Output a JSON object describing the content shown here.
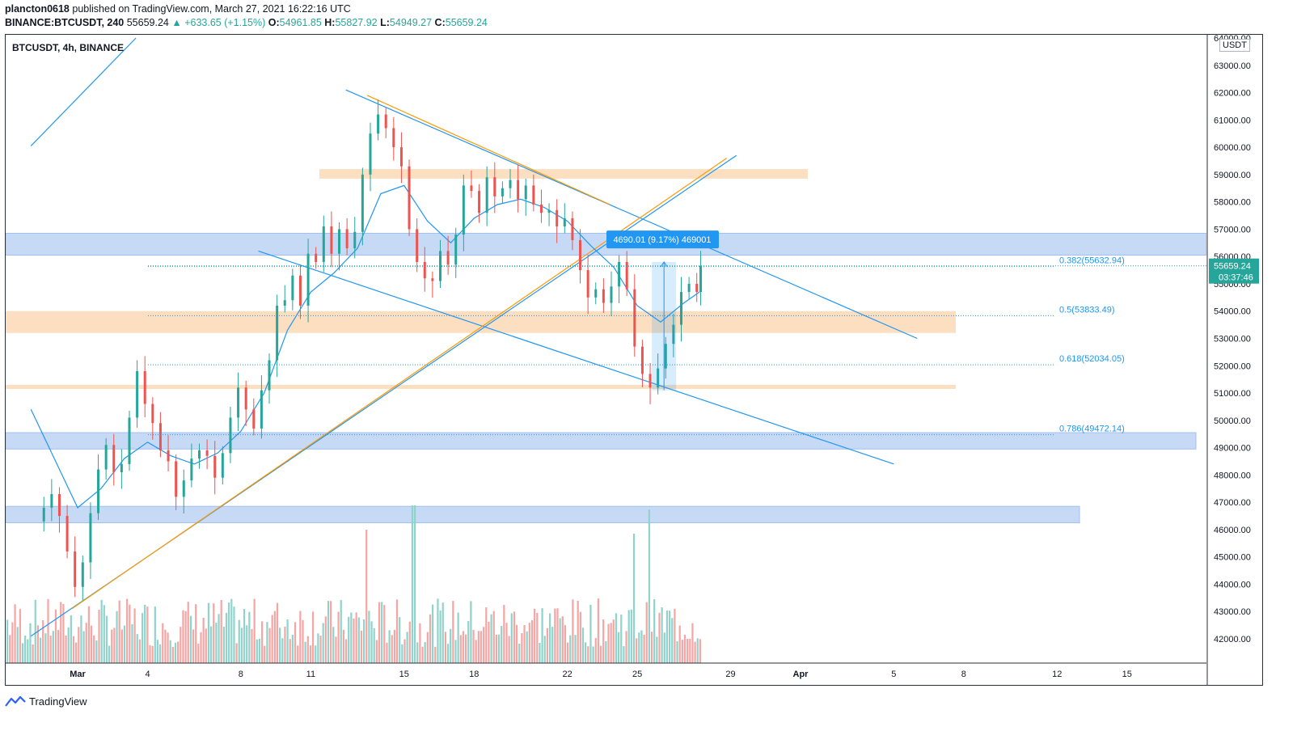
{
  "header": {
    "publisher": "plancton0618",
    "published_text": "published on TradingView.com, March 27, 2021 16:22:16 UTC",
    "symbol_line": "BINANCE:BTCUSDT, 240",
    "last": "55659.24",
    "change": "▲ +633.65 (+1.15%)",
    "o_label": "O:",
    "o": "54961.85",
    "h_label": "H:",
    "h": "55827.92",
    "l_label": "L:",
    "l": "54949.27",
    "c_label": "C:",
    "c": "55659.24"
  },
  "chart_title": "BTCUSDT, 4h, BINANCE",
  "unit_label": "USDT",
  "footer_brand": "TradingView",
  "colors": {
    "up": "#26a69a",
    "down": "#ef5350",
    "up_volume": "#8fd3cb",
    "down_volume": "#f4a6a5",
    "ema": "#2196f3",
    "trendline": "#2196f3",
    "orange": "#ff9800",
    "blue_zone": "#bcd3f5",
    "orange_zone": "#fbd9b5"
  },
  "chart_data": {
    "type": "candlestick",
    "ylim": [
      41000,
      64000
    ],
    "y_ticks": [
      42000,
      43000,
      44000,
      45000,
      46000,
      47000,
      48000,
      49000,
      50000,
      51000,
      52000,
      53000,
      54000,
      55000,
      56000,
      57000,
      58000,
      59000,
      60000,
      61000,
      62000,
      63000,
      64000
    ],
    "y_tick_labels": [
      "42000.00",
      "43000.00",
      "44000.00",
      "45000.00",
      "46000.00",
      "47000.00",
      "48000.00",
      "49000.00",
      "50000.00",
      "51000.00",
      "52000.00",
      "53000.00",
      "54000.00",
      "55000.00",
      "56000.00",
      "57000.00",
      "58000.00",
      "59000.00",
      "60000.00",
      "61000.00",
      "62000.00",
      "63000.00",
      "64000.00"
    ],
    "x_ticks": [
      {
        "label": "Mar",
        "date": "2021-03-01",
        "bold": true
      },
      {
        "label": "4",
        "date": "2021-03-04"
      },
      {
        "label": "8",
        "date": "2021-03-08"
      },
      {
        "label": "11",
        "date": "2021-03-11"
      },
      {
        "label": "15",
        "date": "2021-03-15"
      },
      {
        "label": "18",
        "date": "2021-03-18"
      },
      {
        "label": "22",
        "date": "2021-03-22"
      },
      {
        "label": "25",
        "date": "2021-03-25"
      },
      {
        "label": "29",
        "date": "2021-03-29"
      },
      {
        "label": "Apr",
        "date": "2021-04-01",
        "bold": true
      },
      {
        "label": "5",
        "date": "2021-04-05"
      },
      {
        "label": "8",
        "date": "2021-04-08"
      },
      {
        "label": "12",
        "date": "2021-04-12"
      },
      {
        "label": "15",
        "date": "2021-04-15"
      }
    ],
    "price_series": [
      [
        "2021-02-27 04:00",
        46300
      ],
      [
        "2021-02-27 12:00",
        46800
      ],
      [
        "2021-02-27 20:00",
        47300
      ],
      [
        "2021-02-28 04:00",
        46500
      ],
      [
        "2021-02-28 12:00",
        45200
      ],
      [
        "2021-02-28 20:00",
        43900
      ],
      [
        "2021-03-01 04:00",
        44800
      ],
      [
        "2021-03-01 12:00",
        46600
      ],
      [
        "2021-03-01 20:00",
        48200
      ],
      [
        "2021-03-02 04:00",
        49100
      ],
      [
        "2021-03-02 12:00",
        48100
      ],
      [
        "2021-03-02 20:00",
        48400
      ],
      [
        "2021-03-03 04:00",
        50100
      ],
      [
        "2021-03-03 12:00",
        51800
      ],
      [
        "2021-03-03 20:00",
        50600
      ],
      [
        "2021-03-04 04:00",
        49900
      ],
      [
        "2021-03-04 12:00",
        48900
      ],
      [
        "2021-03-04 20:00",
        48500
      ],
      [
        "2021-03-05 04:00",
        47200
      ],
      [
        "2021-03-05 12:00",
        47800
      ],
      [
        "2021-03-05 20:00",
        48600
      ],
      [
        "2021-03-06 04:00",
        48900
      ],
      [
        "2021-03-06 12:00",
        48700
      ],
      [
        "2021-03-06 20:00",
        47900
      ],
      [
        "2021-03-07 04:00",
        48800
      ],
      [
        "2021-03-07 12:00",
        50100
      ],
      [
        "2021-03-07 20:00",
        51200
      ],
      [
        "2021-03-08 04:00",
        50400
      ],
      [
        "2021-03-08 12:00",
        49700
      ],
      [
        "2021-03-08 20:00",
        51100
      ],
      [
        "2021-03-09 04:00",
        52200
      ],
      [
        "2021-03-09 12:00",
        54200
      ],
      [
        "2021-03-09 20:00",
        54400
      ],
      [
        "2021-03-10 04:00",
        55300
      ],
      [
        "2021-03-10 12:00",
        54200
      ],
      [
        "2021-03-10 20:00",
        56100
      ],
      [
        "2021-03-11 04:00",
        55800
      ],
      [
        "2021-03-11 12:00",
        57100
      ],
      [
        "2021-03-11 20:00",
        56100
      ],
      [
        "2021-03-12 04:00",
        57000
      ],
      [
        "2021-03-12 12:00",
        56300
      ],
      [
        "2021-03-12 20:00",
        56900
      ],
      [
        "2021-03-13 04:00",
        59000
      ],
      [
        "2021-03-13 12:00",
        60500
      ],
      [
        "2021-03-13 20:00",
        61200
      ],
      [
        "2021-03-14 04:00",
        60700
      ],
      [
        "2021-03-14 12:00",
        60000
      ],
      [
        "2021-03-14 20:00",
        59300
      ],
      [
        "2021-03-15 04:00",
        57000
      ],
      [
        "2021-03-15 12:00",
        55800
      ],
      [
        "2021-03-15 20:00",
        55200
      ],
      [
        "2021-03-16 04:00",
        55100
      ],
      [
        "2021-03-16 12:00",
        56200
      ],
      [
        "2021-03-16 20:00",
        55700
      ],
      [
        "2021-03-17 04:00",
        56800
      ],
      [
        "2021-03-17 12:00",
        58600
      ],
      [
        "2021-03-17 20:00",
        58400
      ],
      [
        "2021-03-18 04:00",
        57600
      ],
      [
        "2021-03-18 12:00",
        58900
      ],
      [
        "2021-03-18 20:00",
        58200
      ],
      [
        "2021-03-19 04:00",
        58500
      ],
      [
        "2021-03-19 12:00",
        58800
      ],
      [
        "2021-03-19 20:00",
        58100
      ],
      [
        "2021-03-20 04:00",
        58600
      ],
      [
        "2021-03-20 12:00",
        57900
      ],
      [
        "2021-03-20 20:00",
        57600
      ],
      [
        "2021-03-21 04:00",
        57700
      ],
      [
        "2021-03-21 12:00",
        57100
      ],
      [
        "2021-03-21 20:00",
        57400
      ],
      [
        "2021-03-22 04:00",
        56600
      ],
      [
        "2021-03-22 12:00",
        55500
      ],
      [
        "2021-03-22 20:00",
        54500
      ],
      [
        "2021-03-23 04:00",
        54800
      ],
      [
        "2021-03-23 12:00",
        54300
      ],
      [
        "2021-03-23 20:00",
        54900
      ],
      [
        "2021-03-24 04:00",
        55800
      ],
      [
        "2021-03-24 12:00",
        54800
      ],
      [
        "2021-03-24 20:00",
        52700
      ],
      [
        "2021-03-25 04:00",
        51700
      ],
      [
        "2021-03-25 12:00",
        51200
      ],
      [
        "2021-03-25 20:00",
        51900
      ],
      [
        "2021-03-26 04:00",
        52800
      ],
      [
        "2021-03-26 12:00",
        53500
      ],
      [
        "2021-03-26 20:00",
        54700
      ],
      [
        "2021-03-27 04:00",
        55000
      ],
      [
        "2021-03-27 12:00",
        54700
      ],
      [
        "2021-03-27 16:00",
        55659
      ]
    ],
    "ema_series": [
      [
        "2021-02-27 00:00",
        50400
      ],
      [
        "2021-02-28 00:00",
        48600
      ],
      [
        "2021-03-01 00:00",
        46800
      ],
      [
        "2021-03-02 00:00",
        47500
      ],
      [
        "2021-03-03 00:00",
        48600
      ],
      [
        "2021-03-04 00:00",
        49200
      ],
      [
        "2021-03-05 00:00",
        48700
      ],
      [
        "2021-03-06 00:00",
        48400
      ],
      [
        "2021-03-07 00:00",
        48800
      ],
      [
        "2021-03-08 00:00",
        49600
      ],
      [
        "2021-03-09 00:00",
        51000
      ],
      [
        "2021-03-10 00:00",
        53300
      ],
      [
        "2021-03-11 00:00",
        54700
      ],
      [
        "2021-03-12 00:00",
        55400
      ],
      [
        "2021-03-13 00:00",
        56300
      ],
      [
        "2021-03-14 00:00",
        58300
      ],
      [
        "2021-03-15 00:00",
        58600
      ],
      [
        "2021-03-16 00:00",
        57300
      ],
      [
        "2021-03-17 00:00",
        56500
      ],
      [
        "2021-03-18 00:00",
        57400
      ],
      [
        "2021-03-19 00:00",
        57900
      ],
      [
        "2021-03-20 00:00",
        58100
      ],
      [
        "2021-03-21 00:00",
        57800
      ],
      [
        "2021-03-22 00:00",
        57300
      ],
      [
        "2021-03-23 00:00",
        56400
      ],
      [
        "2021-03-24 00:00",
        55600
      ],
      [
        "2021-03-25 00:00",
        54200
      ],
      [
        "2021-03-26 00:00",
        53600
      ],
      [
        "2021-03-27 00:00",
        54300
      ],
      [
        "2021-03-27 16:00",
        54700
      ]
    ],
    "annotations": {
      "blue_zones": [
        [
          56050,
          56850
        ],
        [
          48950,
          49550
        ],
        [
          46250,
          46850
        ]
      ],
      "orange_zones": [
        [
          58850,
          59200
        ],
        [
          53200,
          54000
        ],
        [
          51150,
          51300
        ]
      ],
      "fib_levels": [
        {
          "label": "0.382(55632.94)",
          "value": 55632.94
        },
        {
          "label": "0.5(53833.49)",
          "value": 53833.49
        },
        {
          "label": "0.618(52034.05)",
          "value": 52034.05
        },
        {
          "label": "0.786(49472.14)",
          "value": 49472.14
        }
      ],
      "measure_label": "4690.01 (9.17%) 469001",
      "last_price_label": "55659.24",
      "countdown_label": "03:37:46"
    }
  }
}
